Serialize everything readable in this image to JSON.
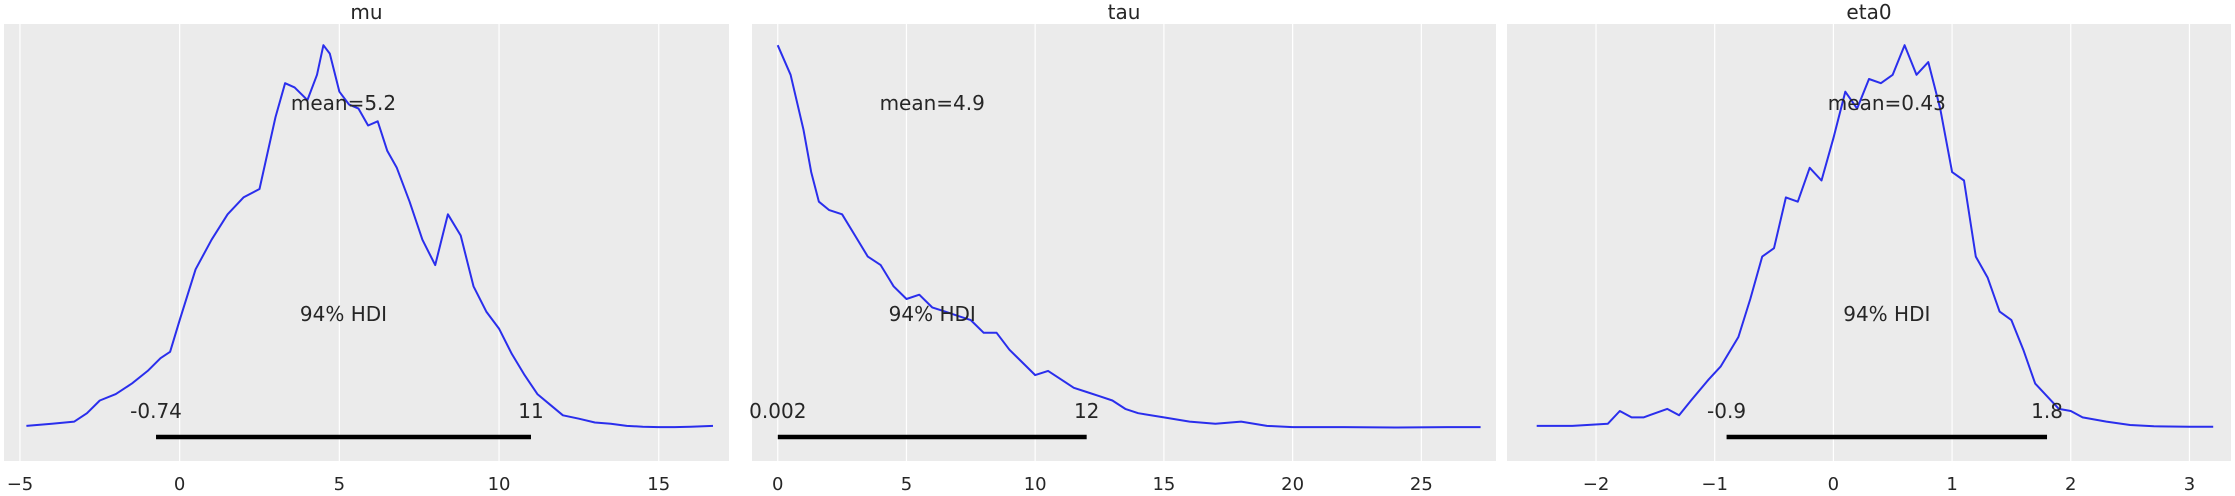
{
  "chart_data": [
    {
      "type": "line",
      "title": "mu",
      "xlim": [
        -5.5,
        17.2
      ],
      "xticks": [
        -5,
        0,
        5,
        10,
        15
      ],
      "xtick_labels": [
        "−5",
        "0",
        "5",
        "10",
        "15"
      ],
      "ylim": [
        0,
        1
      ],
      "grid": true,
      "series": [
        {
          "x": [
            -4.8,
            -4,
            -3.3,
            -2.9,
            -2.5,
            -2,
            -1.5,
            -1,
            -0.6,
            -0.3,
            0,
            0.5,
            1,
            1.5,
            2,
            2.5,
            3,
            3.3,
            3.6,
            4,
            4.3,
            4.5,
            4.7,
            5,
            5.3,
            5.6,
            5.9,
            6.2,
            6.5,
            6.8,
            7.2,
            7.6,
            8,
            8.4,
            8.8,
            9.2,
            9.6,
            10,
            10.4,
            10.8,
            11.2,
            11.6,
            12,
            12.5,
            13,
            13.5,
            14,
            14.5,
            15,
            15.5,
            16,
            16.7
          ],
          "y": [
            0.05,
            0.055,
            0.06,
            0.08,
            0.11,
            0.125,
            0.15,
            0.18,
            0.21,
            0.225,
            0.3,
            0.42,
            0.49,
            0.55,
            0.59,
            0.61,
            0.78,
            0.86,
            0.85,
            0.82,
            0.88,
            0.95,
            0.93,
            0.84,
            0.81,
            0.8,
            0.76,
            0.77,
            0.7,
            0.66,
            0.58,
            0.49,
            0.43,
            0.55,
            0.5,
            0.38,
            0.32,
            0.28,
            0.22,
            0.17,
            0.125,
            0.1,
            0.075,
            0.067,
            0.058,
            0.055,
            0.05,
            0.048,
            0.047,
            0.047,
            0.048,
            0.05
          ]
        }
      ],
      "mean_label": "mean=5.2",
      "hdi_label": "94% HDI",
      "hdi": [
        -0.74,
        11
      ],
      "hdi_low_label": "-0.74",
      "hdi_high_label": "11"
    },
    {
      "type": "line",
      "title": "tau",
      "xlim": [
        -1.0,
        27.9
      ],
      "xticks": [
        0,
        5,
        10,
        15,
        20,
        25
      ],
      "xtick_labels": [
        "0",
        "5",
        "10",
        "15",
        "20",
        "25"
      ],
      "ylim": [
        0,
        1
      ],
      "grid": true,
      "series": [
        {
          "x": [
            0,
            0.5,
            1,
            1.3,
            1.6,
            2,
            2.5,
            3,
            3.5,
            4,
            4.5,
            5,
            5.5,
            6,
            6.5,
            7,
            7.5,
            8,
            8.5,
            9,
            9.5,
            10,
            10.5,
            11,
            11.5,
            12,
            12.5,
            13,
            13.5,
            14,
            15,
            16,
            17,
            18,
            19,
            20,
            22,
            24,
            26,
            27.3
          ],
          "y": [
            0.95,
            0.88,
            0.75,
            0.65,
            0.58,
            0.56,
            0.55,
            0.5,
            0.45,
            0.43,
            0.38,
            0.35,
            0.36,
            0.33,
            0.32,
            0.31,
            0.3,
            0.27,
            0.27,
            0.23,
            0.2,
            0.17,
            0.18,
            0.16,
            0.14,
            0.13,
            0.12,
            0.11,
            0.09,
            0.08,
            0.07,
            0.06,
            0.055,
            0.06,
            0.05,
            0.047,
            0.047,
            0.046,
            0.047,
            0.047
          ]
        }
      ],
      "mean_label": "mean=4.9",
      "hdi_label": "94% HDI",
      "hdi": [
        0.002,
        12
      ],
      "hdi_low_label": "0.002",
      "hdi_high_label": "12"
    },
    {
      "type": "line",
      "title": "eta0",
      "xlim": [
        -2.75,
        3.35
      ],
      "xticks": [
        -2,
        -1,
        0,
        1,
        2,
        3
      ],
      "xtick_labels": [
        "−2",
        "−1",
        "0",
        "1",
        "2",
        "3"
      ],
      "ylim": [
        0,
        1
      ],
      "grid": true,
      "series": [
        {
          "x": [
            -2.5,
            -2.2,
            -1.9,
            -1.8,
            -1.7,
            -1.6,
            -1.4,
            -1.3,
            -1.2,
            -1.05,
            -0.95,
            -0.8,
            -0.7,
            -0.6,
            -0.5,
            -0.4,
            -0.3,
            -0.2,
            -0.1,
            0,
            0.1,
            0.2,
            0.3,
            0.4,
            0.5,
            0.6,
            0.7,
            0.8,
            0.9,
            1,
            1.1,
            1.2,
            1.3,
            1.4,
            1.5,
            1.6,
            1.7,
            1.8,
            1.9,
            2,
            2.1,
            2.3,
            2.5,
            2.7,
            3,
            3.2
          ],
          "y": [
            0.05,
            0.05,
            0.055,
            0.085,
            0.07,
            0.07,
            0.09,
            0.075,
            0.11,
            0.16,
            0.19,
            0.26,
            0.35,
            0.45,
            0.47,
            0.59,
            0.58,
            0.66,
            0.63,
            0.73,
            0.84,
            0.8,
            0.87,
            0.86,
            0.88,
            0.95,
            0.88,
            0.91,
            0.8,
            0.65,
            0.63,
            0.45,
            0.4,
            0.32,
            0.3,
            0.23,
            0.15,
            0.12,
            0.09,
            0.085,
            0.07,
            0.06,
            0.052,
            0.049,
            0.048,
            0.048
          ]
        }
      ],
      "mean_label": "mean=0.43",
      "hdi_label": "94% HDI",
      "hdi": [
        -0.9,
        1.8
      ],
      "hdi_low_label": "-0.9",
      "hdi_high_label": "1.8"
    }
  ],
  "colors": {
    "panel_bg": "#ebebeb",
    "grid": "#ffffff",
    "kde_line": "#2a2eec",
    "hdi_bar": "#000000",
    "text": "#262626"
  }
}
